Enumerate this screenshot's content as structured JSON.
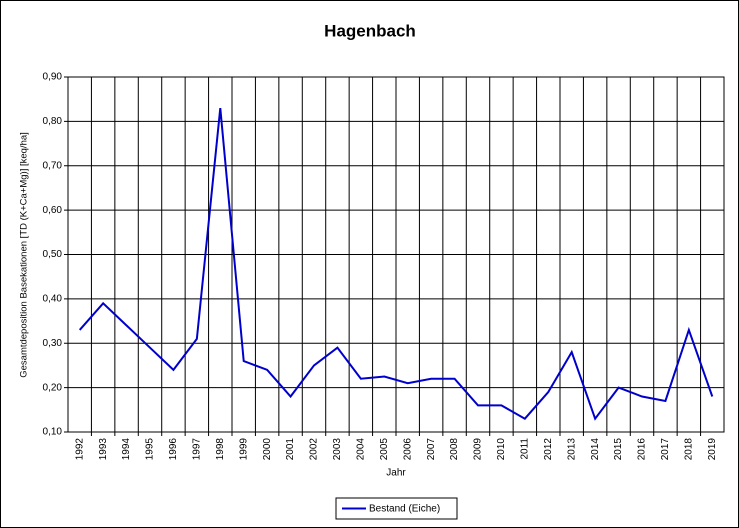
{
  "chart_data": {
    "type": "line",
    "title": "Hagenbach",
    "x_label": "Jahr",
    "y_label": "Gesamtdeposition Basekationen [TD (K+Ca+Mg)] [keq/ha]",
    "categories": [
      "1992",
      "1993",
      "1994",
      "1995",
      "1996",
      "1997",
      "1998",
      "1999",
      "2000",
      "2001",
      "2002",
      "2003",
      "2004",
      "2005",
      "2006",
      "2007",
      "2008",
      "2009",
      "2010",
      "2011",
      "2012",
      "2013",
      "2014",
      "2015",
      "2016",
      "2017",
      "2018",
      "2019"
    ],
    "series": [
      {
        "name": "Bestand (Eiche)",
        "color": "#0000cc",
        "values": [
          0.33,
          0.39,
          0.34,
          0.29,
          0.24,
          0.31,
          0.83,
          0.26,
          0.24,
          0.18,
          0.25,
          0.29,
          0.22,
          0.225,
          0.21,
          0.22,
          0.22,
          0.16,
          0.16,
          0.13,
          0.19,
          0.28,
          0.13,
          0.2,
          0.18,
          0.17,
          0.33,
          0.18
        ]
      }
    ],
    "ylim": [
      0.1,
      0.9
    ],
    "yticks": [
      {
        "value": 0.1,
        "label": "0,10"
      },
      {
        "value": 0.2,
        "label": "0,20"
      },
      {
        "value": 0.3,
        "label": "0,30"
      },
      {
        "value": 0.4,
        "label": "0,40"
      },
      {
        "value": 0.5,
        "label": "0,50"
      },
      {
        "value": 0.6,
        "label": "0,60"
      },
      {
        "value": 0.7,
        "label": "0,70"
      },
      {
        "value": 0.8,
        "label": "0,80"
      },
      {
        "value": 0.9,
        "label": "0,90"
      }
    ],
    "grid": true,
    "legend": "bottom"
  }
}
